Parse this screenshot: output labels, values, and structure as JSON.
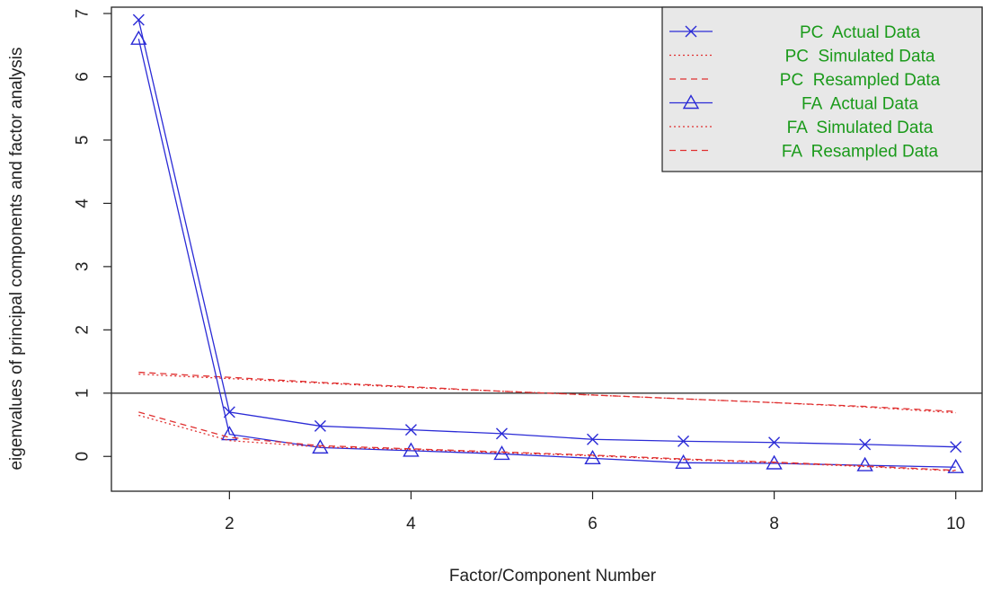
{
  "chart_data": {
    "type": "line",
    "title": "",
    "xlabel": "Factor/Component Number",
    "ylabel": "eigenvalues of principal components and factor analysis",
    "xlim": [
      0.7,
      10.3
    ],
    "ylim": [
      -0.55,
      7.1
    ],
    "xticks": [
      2,
      4,
      6,
      8,
      10
    ],
    "yticks": [
      0,
      1,
      2,
      3,
      4,
      5,
      6,
      7
    ],
    "reference_line": {
      "y": 1
    },
    "grid": false,
    "legend_position": "top-right",
    "x": [
      1,
      2,
      3,
      4,
      5,
      6,
      7,
      8,
      9,
      10
    ],
    "series": [
      {
        "name": "PC  Actual Data",
        "color": "#2b2bd6",
        "style": "solid",
        "marker": "x",
        "values": [
          6.9,
          0.7,
          0.48,
          0.42,
          0.36,
          0.27,
          0.24,
          0.22,
          0.19,
          0.15
        ]
      },
      {
        "name": "PC  Simulated Data",
        "color": "#e03030",
        "style": "dotted",
        "marker": "none",
        "values": [
          1.3,
          1.23,
          1.16,
          1.09,
          1.03,
          0.97,
          0.91,
          0.85,
          0.78,
          0.69
        ]
      },
      {
        "name": "PC  Resampled Data",
        "color": "#e03030",
        "style": "dashed",
        "marker": "none",
        "values": [
          1.33,
          1.25,
          1.17,
          1.1,
          1.03,
          0.97,
          0.91,
          0.85,
          0.79,
          0.71
        ]
      },
      {
        "name": "FA  Actual Data",
        "color": "#2b2bd6",
        "style": "solid",
        "marker": "triangle",
        "values": [
          6.6,
          0.35,
          0.14,
          0.09,
          0.04,
          -0.03,
          -0.1,
          -0.11,
          -0.14,
          -0.17
        ]
      },
      {
        "name": "FA  Simulated Data",
        "color": "#e03030",
        "style": "dotted",
        "marker": "none",
        "values": [
          0.65,
          0.25,
          0.15,
          0.11,
          0.06,
          0.01,
          -0.05,
          -0.1,
          -0.16,
          -0.23
        ]
      },
      {
        "name": "FA  Resampled Data",
        "color": "#e03030",
        "style": "dashed",
        "marker": "none",
        "values": [
          0.7,
          0.3,
          0.17,
          0.12,
          0.07,
          0.02,
          -0.04,
          -0.09,
          -0.15,
          -0.22
        ]
      }
    ],
    "legend_text_color": "#1a9a1a",
    "legend_background": "#e8e8e8"
  }
}
